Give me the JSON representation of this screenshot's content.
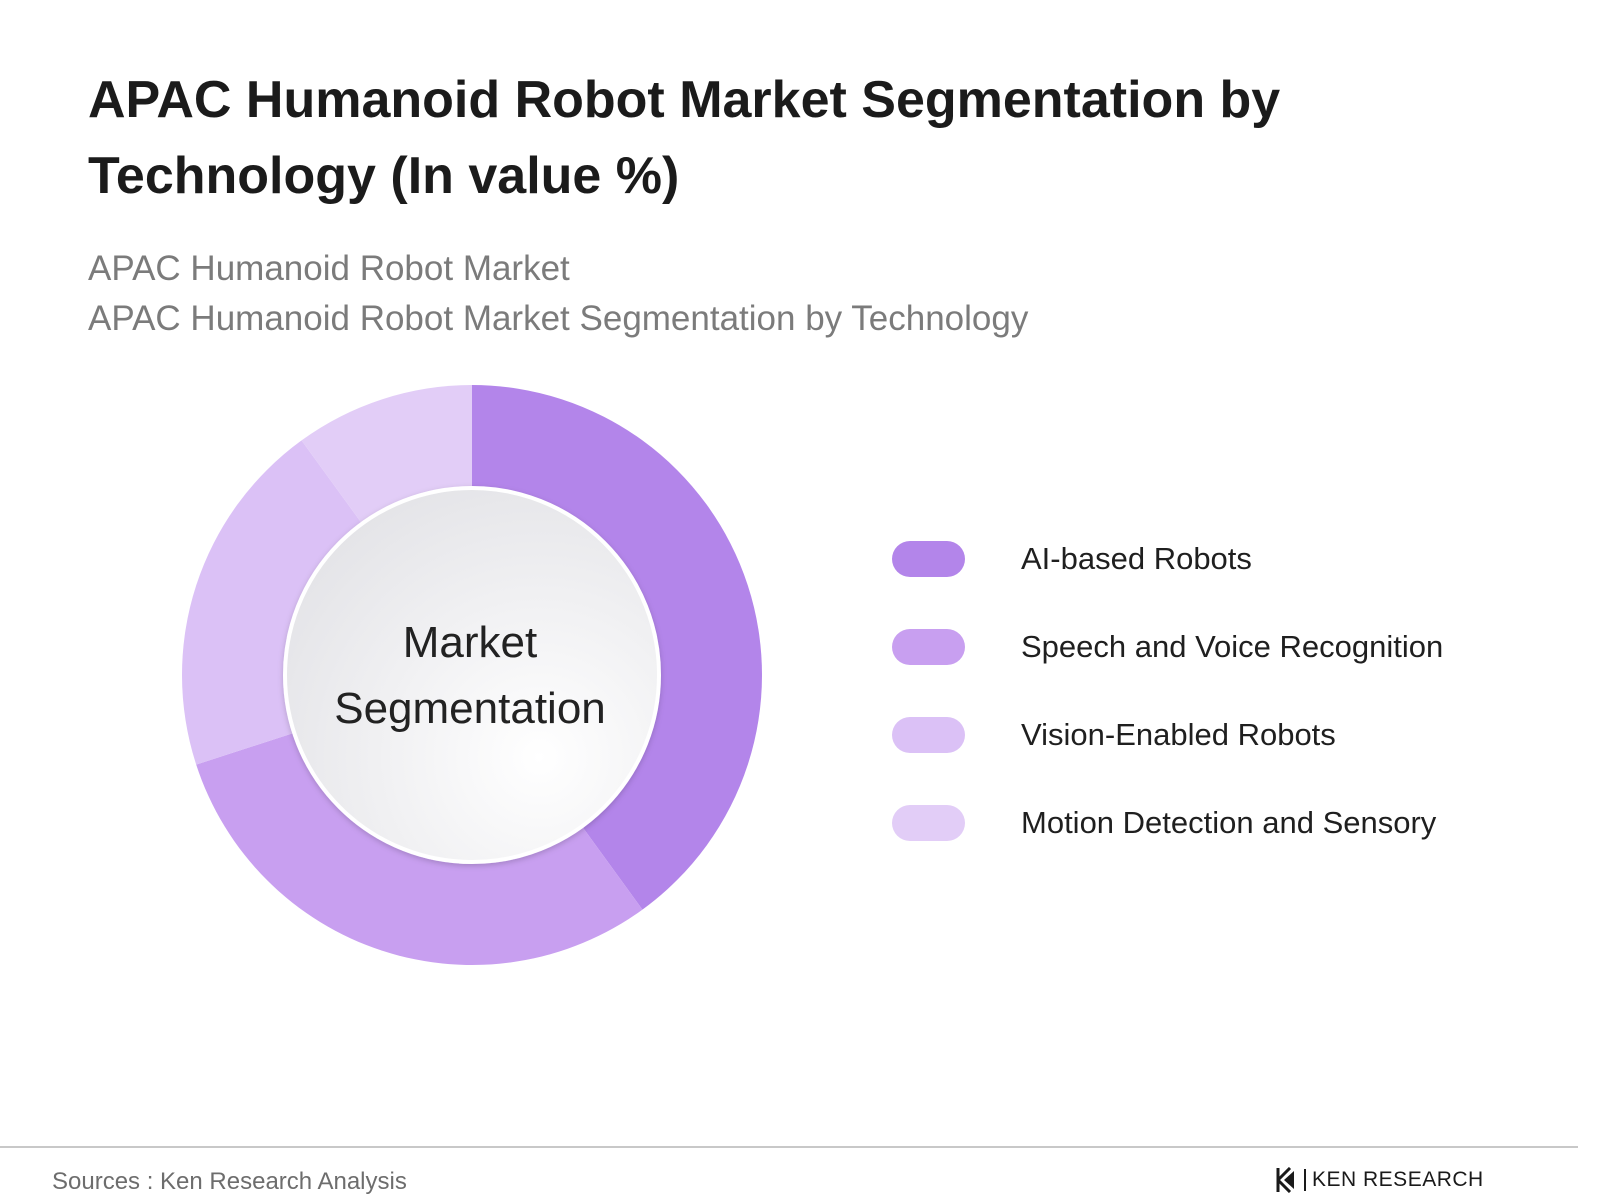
{
  "header": {
    "title": "APAC Humanoid Robot Market Segmentation by Technology (In value %)",
    "subtitle_line1": "APAC Humanoid Robot Market",
    "subtitle_line2": "APAC Humanoid Robot Market Segmentation by Technology"
  },
  "chart_data": {
    "type": "pie",
    "style": "donut",
    "center_label_line1": "Market",
    "center_label_line2": "Segmentation",
    "legend_position": "right",
    "slices": [
      {
        "label": "AI-based Robots",
        "value": 40,
        "color": "#b385ea"
      },
      {
        "label": "Speech and Voice Recognition",
        "value": 30,
        "color": "#c89ff0"
      },
      {
        "label": "Vision-Enabled Robots",
        "value": 20,
        "color": "#dbc1f6"
      },
      {
        "label": "Motion Detection and Sensory",
        "value": 10,
        "color": "#e2cdf7"
      }
    ]
  },
  "footer": {
    "source": "Sources : Ken Research Analysis",
    "brand": "KEN RESEARCH"
  }
}
